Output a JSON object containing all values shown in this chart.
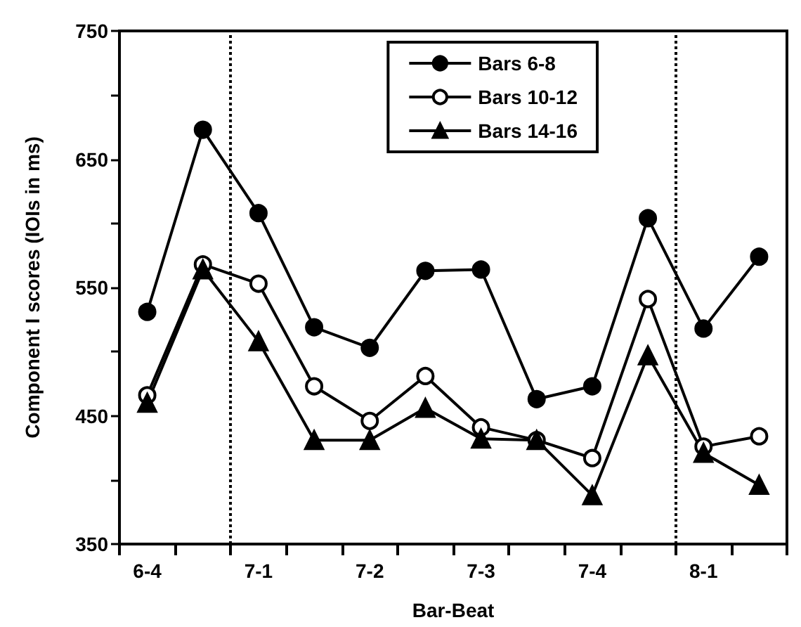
{
  "chart_data": {
    "type": "line",
    "xlabel": "Bar-Beat",
    "ylabel": "Component I scores (IOIs in ms)",
    "categories": [
      "6-4",
      null,
      "7-1",
      null,
      "7-2",
      null,
      "7-3",
      null,
      "7-4",
      null,
      "8-1",
      null
    ],
    "series": [
      {
        "name": "Bars 6-8",
        "color": "#000000",
        "marker": "circle",
        "values": [
          531,
          673,
          608,
          519,
          503,
          563,
          564,
          463,
          473,
          604,
          518,
          574
        ]
      },
      {
        "name": "Bars 10-12",
        "color": "#000000",
        "marker": "emptyCircle",
        "values": [
          466,
          568,
          553,
          473,
          446,
          481,
          441,
          431,
          417,
          541,
          426,
          434
        ]
      },
      {
        "name": "Bars 14-16",
        "color": "#000000",
        "marker": "triangle",
        "values": [
          460,
          564,
          508,
          431,
          431,
          456,
          432,
          431,
          388,
          497,
          421,
          396
        ]
      }
    ],
    "ylim": [
      350,
      750
    ],
    "yticks": [
      350,
      {
        "value": 400,
        "label": null
      },
      450,
      {
        "value": 500,
        "label": null
      },
      550,
      {
        "value": 600,
        "label": null
      },
      650,
      {
        "value": 700,
        "label": null
      },
      750
    ],
    "legend": "top right",
    "line_style": "solid"
  }
}
